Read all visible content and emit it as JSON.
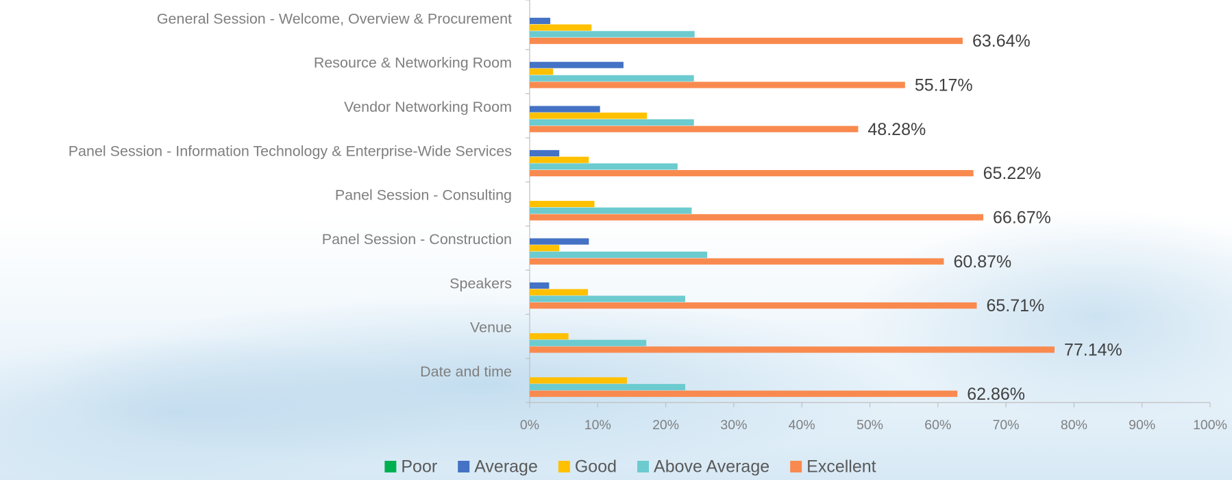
{
  "chart_data": {
    "type": "bar",
    "orientation": "horizontal",
    "categories": [
      "General Session - Welcome, Overview & Procurement",
      "Resource & Networking Room",
      "Vendor Networking Room",
      "Panel Session - Information Technology & Enterprise-Wide Services",
      "Panel Session - Consulting",
      "Panel Session - Construction",
      "Speakers",
      "Venue",
      "Date and time"
    ],
    "series": [
      {
        "name": "Poor",
        "color": "#00b050",
        "values": [
          0,
          0,
          0,
          0,
          0,
          0,
          0,
          0,
          0
        ]
      },
      {
        "name": "Average",
        "color": "#4472c4",
        "values": [
          3.03,
          13.79,
          10.34,
          4.35,
          0,
          8.7,
          2.86,
          0,
          0
        ]
      },
      {
        "name": "Good",
        "color": "#ffc000",
        "values": [
          9.09,
          3.45,
          17.24,
          8.7,
          9.52,
          4.35,
          8.57,
          5.71,
          14.29
        ]
      },
      {
        "name": "Above Average",
        "color": "#6ccbcf",
        "values": [
          24.24,
          24.14,
          24.14,
          21.74,
          23.81,
          26.09,
          22.86,
          17.14,
          22.86
        ]
      },
      {
        "name": "Excellent",
        "color": "#f98a4f",
        "values": [
          63.64,
          55.17,
          48.28,
          65.22,
          66.67,
          60.87,
          65.71,
          77.14,
          62.86
        ],
        "value_labels": [
          "63.64%",
          "55.17%",
          "48.28%",
          "65.22%",
          "66.67%",
          "60.87%",
          "65.71%",
          "77.14%",
          "62.86%"
        ]
      }
    ],
    "xlim": [
      0,
      100
    ],
    "xticks": [
      {
        "value": 0,
        "label": "0%"
      },
      {
        "value": 10,
        "label": "10%"
      },
      {
        "value": 20,
        "label": "20%"
      },
      {
        "value": 30,
        "label": "30%"
      },
      {
        "value": 40,
        "label": "40%"
      },
      {
        "value": 50,
        "label": "50%"
      },
      {
        "value": 60,
        "label": "60%"
      },
      {
        "value": 70,
        "label": "70%"
      },
      {
        "value": 80,
        "label": "80%"
      },
      {
        "value": 90,
        "label": "90%"
      },
      {
        "value": 100,
        "label": "100%"
      }
    ],
    "legend": "bottom",
    "grid": false
  }
}
